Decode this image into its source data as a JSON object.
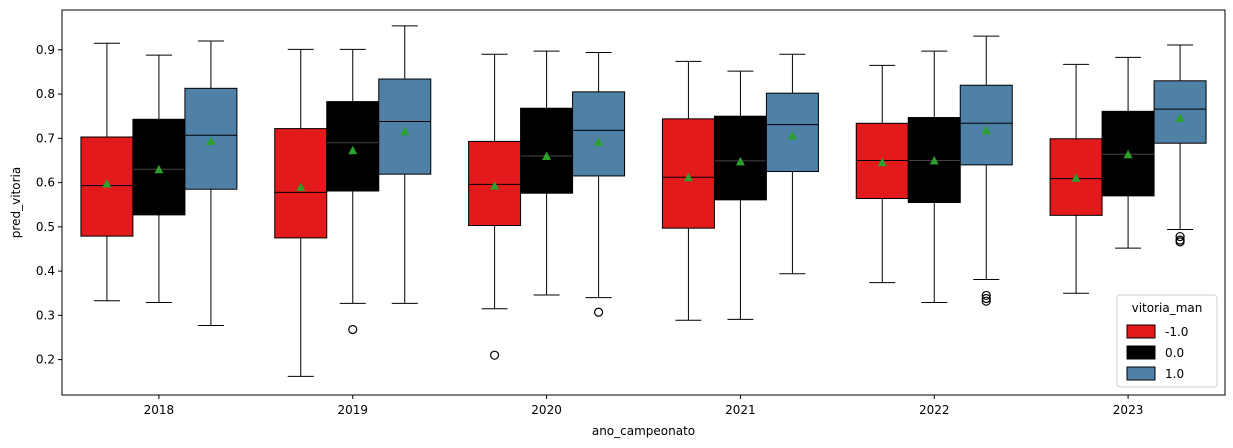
{
  "chart_data": {
    "type": "box",
    "xlabel": "ano_campeonato",
    "ylabel": "pred_vitoria",
    "ylim": [
      0.12,
      0.99
    ],
    "yticks": [
      "0.2",
      "0.3",
      "0.4",
      "0.5",
      "0.6",
      "0.7",
      "0.8",
      "0.9"
    ],
    "categories": [
      "2018",
      "2019",
      "2020",
      "2021",
      "2022",
      "2023"
    ],
    "legend": {
      "title": "vitoria_man",
      "position": "lower-right",
      "entries": [
        {
          "label": "-1.0",
          "color": "#e31a1c"
        },
        {
          "label": "0.0",
          "color": "#000000"
        },
        {
          "label": "1.0",
          "color": "#4f81a7"
        }
      ]
    },
    "mean_marker_color": "#2ca02c",
    "series": [
      {
        "name": "-1.0",
        "color": "#e31a1c",
        "boxes": [
          {
            "min": 0.333,
            "q1": 0.479,
            "median": 0.593,
            "q3": 0.703,
            "max": 0.915,
            "mean": 0.598,
            "outliers": []
          },
          {
            "min": 0.162,
            "q1": 0.475,
            "median": 0.578,
            "q3": 0.722,
            "max": 0.901,
            "mean": 0.59,
            "outliers": []
          },
          {
            "min": 0.315,
            "q1": 0.503,
            "median": 0.596,
            "q3": 0.693,
            "max": 0.89,
            "mean": 0.593,
            "outliers": [
              0.21
            ]
          },
          {
            "min": 0.289,
            "q1": 0.497,
            "median": 0.612,
            "q3": 0.744,
            "max": 0.874,
            "mean": 0.612,
            "outliers": []
          },
          {
            "min": 0.374,
            "q1": 0.564,
            "median": 0.65,
            "q3": 0.734,
            "max": 0.865,
            "mean": 0.646,
            "outliers": []
          },
          {
            "min": 0.35,
            "q1": 0.526,
            "median": 0.609,
            "q3": 0.699,
            "max": 0.867,
            "mean": 0.611,
            "outliers": []
          }
        ]
      },
      {
        "name": "0.0",
        "color": "#000000",
        "boxes": [
          {
            "min": 0.329,
            "q1": 0.527,
            "median": 0.63,
            "q3": 0.743,
            "max": 0.888,
            "mean": 0.63,
            "outliers": []
          },
          {
            "min": 0.327,
            "q1": 0.581,
            "median": 0.69,
            "q3": 0.783,
            "max": 0.901,
            "mean": 0.673,
            "outliers": [
              0.268
            ]
          },
          {
            "min": 0.346,
            "q1": 0.576,
            "median": 0.66,
            "q3": 0.768,
            "max": 0.897,
            "mean": 0.66,
            "outliers": []
          },
          {
            "min": 0.291,
            "q1": 0.561,
            "median": 0.649,
            "q3": 0.75,
            "max": 0.852,
            "mean": 0.648,
            "outliers": []
          },
          {
            "min": 0.329,
            "q1": 0.555,
            "median": 0.65,
            "q3": 0.747,
            "max": 0.897,
            "mean": 0.65,
            "outliers": []
          },
          {
            "min": 0.452,
            "q1": 0.57,
            "median": 0.664,
            "q3": 0.761,
            "max": 0.883,
            "mean": 0.664,
            "outliers": []
          }
        ]
      },
      {
        "name": "1.0",
        "color": "#4f81a7",
        "boxes": [
          {
            "min": 0.277,
            "q1": 0.585,
            "median": 0.707,
            "q3": 0.813,
            "max": 0.92,
            "mean": 0.694,
            "outliers": []
          },
          {
            "min": 0.327,
            "q1": 0.619,
            "median": 0.738,
            "q3": 0.834,
            "max": 0.954,
            "mean": 0.716,
            "outliers": []
          },
          {
            "min": 0.34,
            "q1": 0.615,
            "median": 0.718,
            "q3": 0.805,
            "max": 0.894,
            "mean": 0.692,
            "outliers": [
              0.307
            ]
          },
          {
            "min": 0.394,
            "q1": 0.625,
            "median": 0.731,
            "q3": 0.802,
            "max": 0.89,
            "mean": 0.706,
            "outliers": []
          },
          {
            "min": 0.381,
            "q1": 0.64,
            "median": 0.734,
            "q3": 0.82,
            "max": 0.931,
            "mean": 0.718,
            "outliers": [
              0.345,
              0.338,
              0.332
            ]
          },
          {
            "min": 0.494,
            "q1": 0.689,
            "median": 0.766,
            "q3": 0.83,
            "max": 0.911,
            "mean": 0.746,
            "outliers": [
              0.478,
              0.47,
              0.466
            ]
          }
        ]
      }
    ]
  }
}
